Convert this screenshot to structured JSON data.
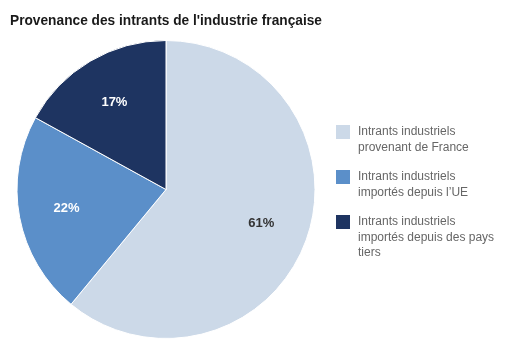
{
  "chart_data": {
    "type": "pie",
    "title": "Provenance des intrants de l'industrie française",
    "categories": [
      "Intrants industriels\nprovenant de France",
      "Intrants industriels\nimportés depuis l’UE",
      "Intrants industriels\nimportés depuis des pays\ntiers"
    ],
    "values": [
      61,
      22,
      17
    ],
    "value_labels": [
      "61%",
      "22%",
      "17%"
    ],
    "colors": [
      "#ccd9e8",
      "#5b8fc9",
      "#1e3461"
    ],
    "data_labels": true,
    "legend": "right"
  }
}
